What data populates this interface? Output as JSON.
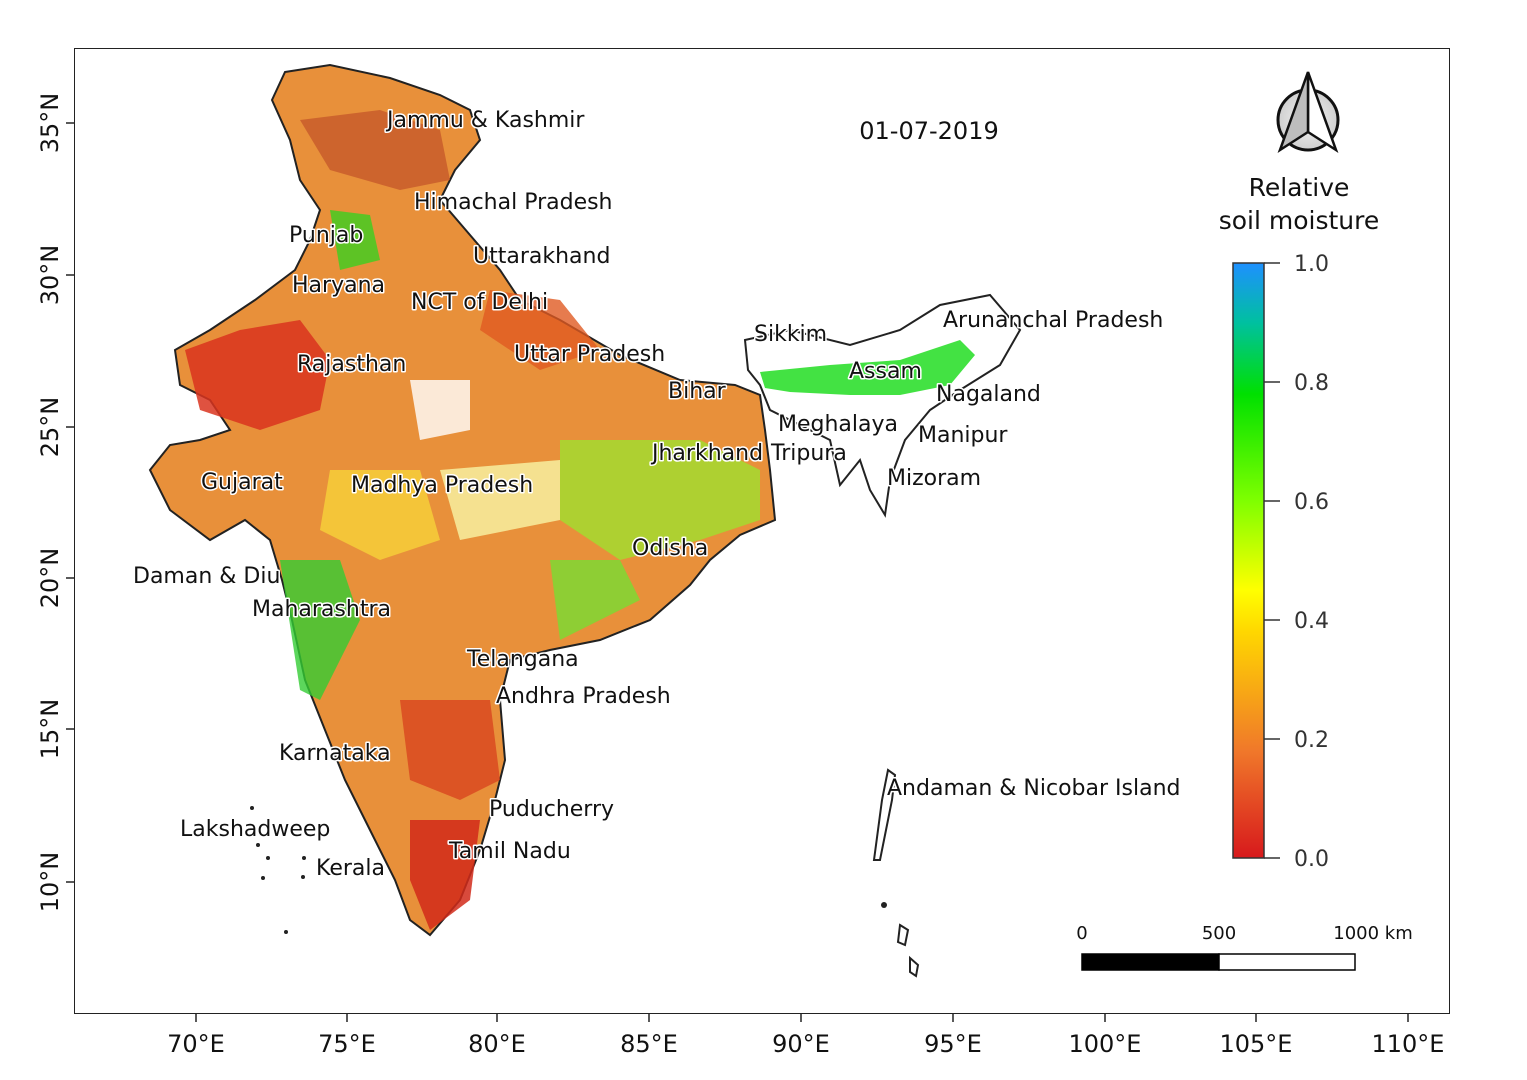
{
  "date": "01-07-2019",
  "legend": {
    "title_line1": "Relative",
    "title_line2": "soil moisture",
    "ticks": [
      "1.0",
      "0.8",
      "0.6",
      "0.4",
      "0.2",
      "0.0"
    ],
    "colors": [
      "#d7191c",
      "#f0782a",
      "#ffd700",
      "#ffff00",
      "#7fff00",
      "#00e000",
      "#00c0a0",
      "#1e90ff"
    ]
  },
  "x_ticks": [
    "70°E",
    "75°E",
    "80°E",
    "85°E",
    "90°E",
    "95°E",
    "100°E",
    "105°E",
    "110°E"
  ],
  "y_ticks": [
    "35°N",
    "30°N",
    "25°N",
    "20°N",
    "15°N",
    "10°N"
  ],
  "scale_bar": {
    "labels": [
      "0",
      "500",
      "1000 km"
    ]
  },
  "states": [
    "Jammu & Kashmir",
    "Himachal Pradesh",
    "Punjab",
    "Uttarakhand",
    "Haryana",
    "NCT of Delhi",
    "Rajasthan",
    "Uttar Pradesh",
    "Sikkim",
    "Arunanchal Pradesh",
    "Assam",
    "Bihar",
    "Nagaland",
    "Meghalaya",
    "Manipur",
    "Jharkhand",
    "Tripura",
    "Gujarat",
    "Madhya Pradesh",
    "Mizoram",
    "Odisha",
    "Daman & Diu",
    "Maharashtra",
    "Telangana",
    "Andhra Pradesh",
    "Karnataka",
    "Andaman & Nicobar Island",
    "Puducherry",
    "Lakshadweep",
    "Tamil Nadu",
    "Kerala"
  ]
}
